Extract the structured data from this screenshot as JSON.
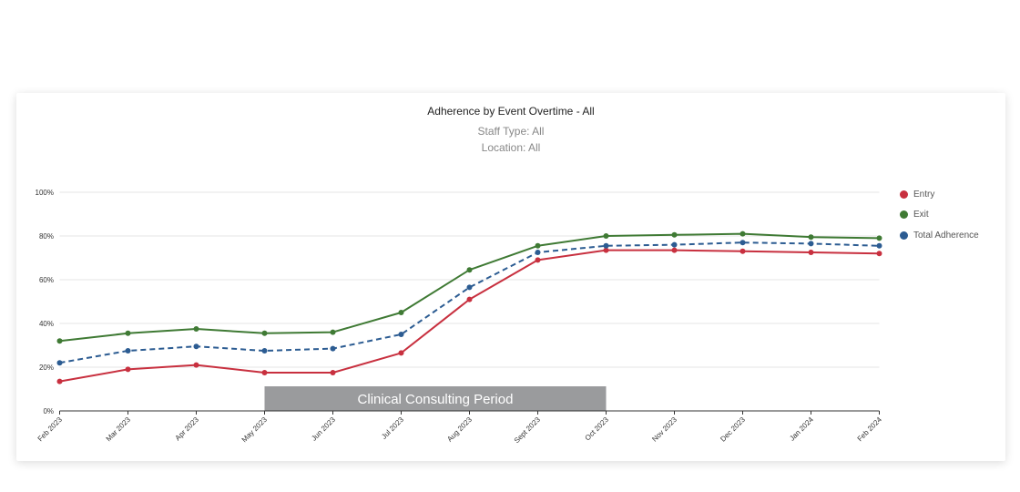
{
  "chart_data": {
    "type": "line",
    "title": "Adherence by Event Overtime - All",
    "subtitle_lines": [
      "Staff Type: All",
      "Location: All"
    ],
    "xlabel": "",
    "ylabel": "",
    "categories": [
      "Feb 2023",
      "Mar 2023",
      "Apr 2023",
      "May 2023",
      "Jun 2023",
      "Jul 2023",
      "Aug 2023",
      "Sept 2023",
      "Oct 2023",
      "Nov 2023",
      "Dec 2023",
      "Jan 2024",
      "Feb 2024"
    ],
    "ylim": [
      0,
      100
    ],
    "yticks": [
      0,
      20,
      40,
      60,
      80,
      100
    ],
    "ytick_labels": [
      "0%",
      "20%",
      "40%",
      "60%",
      "80%",
      "100%"
    ],
    "grid": true,
    "legend_position": "right",
    "series": [
      {
        "name": "Entry",
        "color": "#c8303f",
        "style": "solid",
        "values": [
          13.5,
          19,
          21,
          17.5,
          17.5,
          26.5,
          51,
          69,
          73.5,
          73.5,
          73,
          72.5,
          72
        ]
      },
      {
        "name": "Exit",
        "color": "#3f7a34",
        "style": "solid",
        "values": [
          32,
          35.5,
          37.5,
          35.5,
          36,
          45,
          64.5,
          75.5,
          80,
          80.5,
          81,
          79.5,
          79
        ]
      },
      {
        "name": "Total Adherence",
        "color": "#2c5c92",
        "style": "dashed",
        "values": [
          22,
          27.5,
          29.5,
          27.5,
          28.5,
          35,
          56.5,
          72.5,
          75.5,
          76,
          77,
          76.5,
          75.5
        ]
      }
    ],
    "annotations": [
      {
        "text": "Clinical Consulting Period",
        "x_start": "May 2023",
        "x_end": "Oct 2023",
        "color": "#9a9b9d"
      }
    ]
  }
}
